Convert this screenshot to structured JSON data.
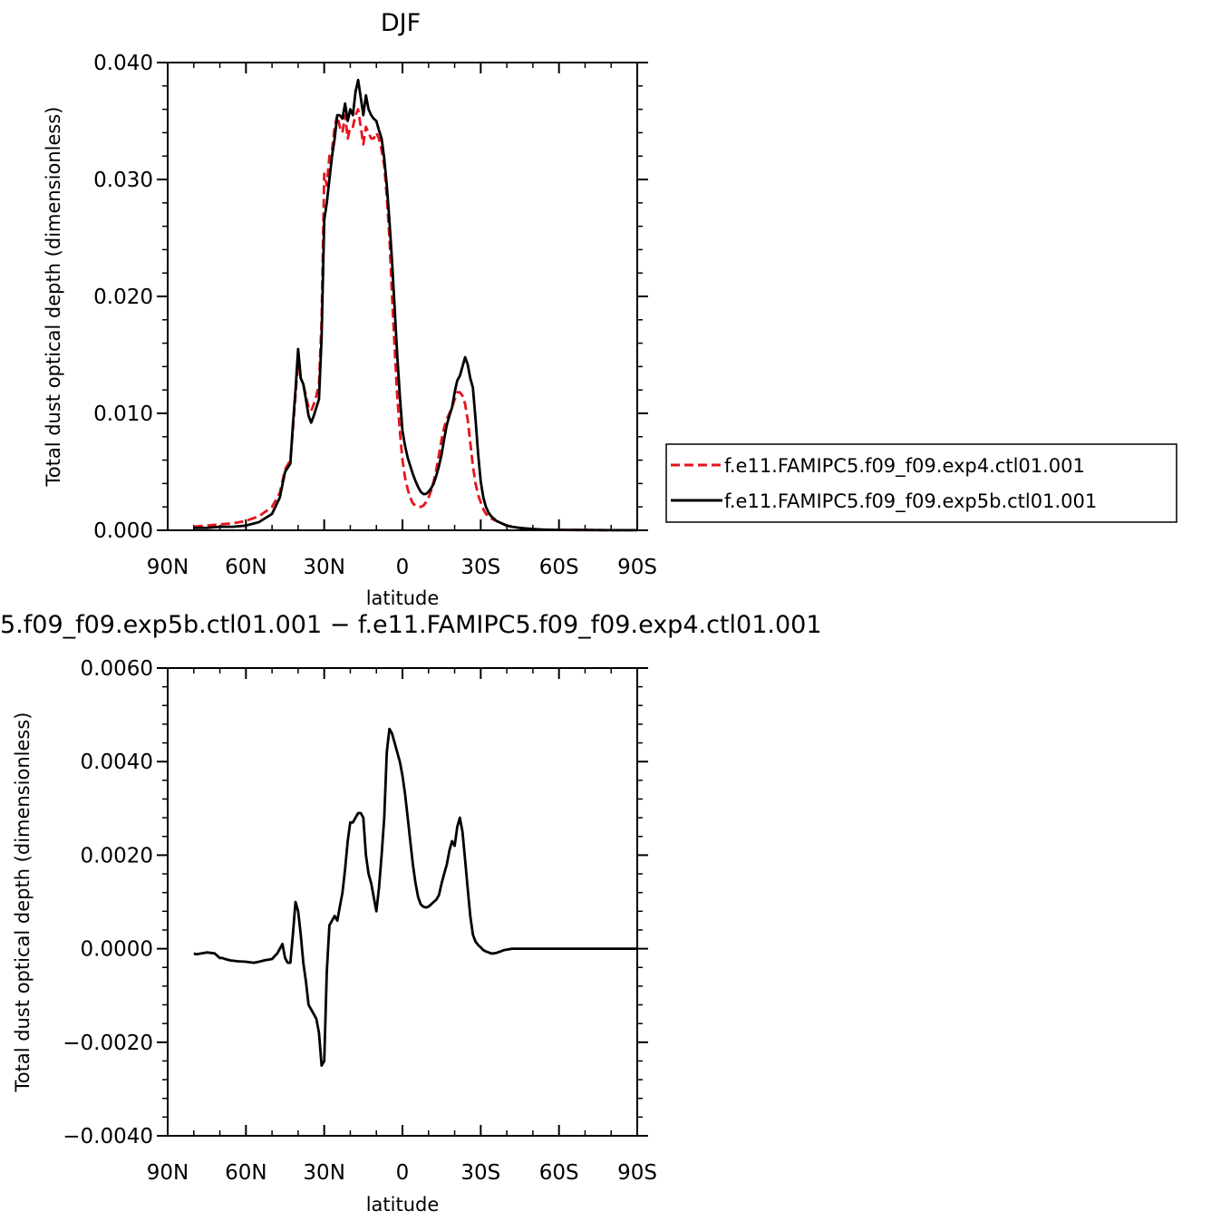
{
  "chart_data": [
    {
      "type": "line",
      "title": "DJF",
      "xlabel": "latitude",
      "ylabel": "Total dust optical depth (dimensionless)",
      "xlim": [
        90,
        -90
      ],
      "ylim": [
        0.0,
        0.04
      ],
      "xticks": [
        90,
        60,
        30,
        0,
        -30,
        -60,
        -90
      ],
      "xtick_labels": [
        "90N",
        "60N",
        "30N",
        "0",
        "30S",
        "60S",
        "90S"
      ],
      "yticks": [
        0.0,
        0.01,
        0.02,
        0.03,
        0.04
      ],
      "ytick_labels": [
        "0.000",
        "0.010",
        "0.020",
        "0.030",
        "0.040"
      ],
      "legend_position": "right",
      "series": [
        {
          "name": "f.e11.FAMIPC5.f09_f09.exp4.ctl01.001",
          "color": "#e8121b",
          "dash": "dashed",
          "x": [
            80,
            75,
            70,
            65,
            60,
            55,
            50,
            47,
            45,
            43,
            42,
            41,
            40,
            39,
            38,
            37,
            36,
            35,
            34,
            33,
            32,
            31,
            30,
            29,
            28,
            27,
            26,
            25,
            24,
            23,
            22,
            21,
            20,
            19,
            18,
            17,
            16,
            15,
            14,
            13,
            12,
            11,
            10,
            9,
            8,
            7,
            6,
            5,
            4,
            3,
            2,
            1,
            0,
            -1,
            -2,
            -3,
            -4,
            -5,
            -6,
            -7,
            -8,
            -9,
            -10,
            -11,
            -12,
            -13,
            -14,
            -15,
            -16,
            -17,
            -18,
            -19,
            -20,
            -21,
            -22,
            -23,
            -24,
            -25,
            -26,
            -27,
            -28,
            -29,
            -30,
            -31,
            -32,
            -33,
            -34,
            -35,
            -36,
            -37,
            -38,
            -40,
            -42,
            -45,
            -50,
            -55,
            -60,
            -70,
            -80,
            -90
          ],
          "y": [
            0.0003,
            0.0004,
            0.0005,
            0.0006,
            0.0008,
            0.0012,
            0.002,
            0.0032,
            0.0052,
            0.006,
            0.0085,
            0.0115,
            0.0145,
            0.013,
            0.0125,
            0.0115,
            0.0105,
            0.0102,
            0.0108,
            0.0115,
            0.0125,
            0.018,
            0.0305,
            0.0295,
            0.032,
            0.0325,
            0.0345,
            0.0355,
            0.0345,
            0.034,
            0.0355,
            0.0335,
            0.0345,
            0.0345,
            0.0355,
            0.036,
            0.0345,
            0.033,
            0.0345,
            0.034,
            0.0335,
            0.0335,
            0.034,
            0.0335,
            0.0325,
            0.0312,
            0.0285,
            0.025,
            0.02,
            0.0155,
            0.0115,
            0.0085,
            0.006,
            0.0045,
            0.0035,
            0.0028,
            0.0023,
            0.0021,
            0.002,
            0.002,
            0.0021,
            0.0024,
            0.0028,
            0.0034,
            0.0042,
            0.0052,
            0.0065,
            0.0078,
            0.0088,
            0.0095,
            0.01,
            0.0105,
            0.0112,
            0.0118,
            0.0118,
            0.0115,
            0.0108,
            0.0095,
            0.0075,
            0.0055,
            0.004,
            0.003,
            0.0024,
            0.0018,
            0.0014,
            0.0012,
            0.001,
            0.0009,
            0.0008,
            0.0007,
            0.0006,
            0.0004,
            0.0003,
            0.0002,
            0.0001,
            5e-05,
            3e-05,
            2e-05,
            1e-05,
            1e-05
          ]
        },
        {
          "name": "f.e11.FAMIPC5.f09_f09.exp5b.ctl01.001",
          "color": "#000000",
          "dash": "solid",
          "x": [
            80,
            75,
            70,
            65,
            60,
            55,
            50,
            47,
            45,
            43,
            42,
            41,
            40,
            39,
            38,
            37,
            36,
            35,
            34,
            33,
            32,
            31,
            30,
            29,
            28,
            27,
            26,
            25,
            24,
            23,
            22,
            21,
            20,
            19,
            18,
            17,
            16,
            15,
            14,
            13,
            12,
            11,
            10,
            9,
            8,
            7,
            6,
            5,
            4,
            3,
            2,
            1,
            0,
            -1,
            -2,
            -3,
            -4,
            -5,
            -6,
            -7,
            -8,
            -9,
            -10,
            -11,
            -12,
            -13,
            -14,
            -15,
            -16,
            -17,
            -18,
            -19,
            -20,
            -21,
            -22,
            -23,
            -24,
            -25,
            -26,
            -27,
            -28,
            -29,
            -30,
            -31,
            -32,
            -33,
            -34,
            -35,
            -36,
            -37,
            -38,
            -40,
            -42,
            -45,
            -50,
            -55,
            -60,
            -70,
            -80,
            -90
          ],
          "y": [
            0.0002,
            0.0002,
            0.0003,
            0.0003,
            0.0004,
            0.0007,
            0.0014,
            0.0028,
            0.005,
            0.0057,
            0.009,
            0.012,
            0.0155,
            0.013,
            0.0125,
            0.0112,
            0.0098,
            0.0092,
            0.0098,
            0.0105,
            0.0112,
            0.0165,
            0.0265,
            0.028,
            0.03,
            0.032,
            0.0335,
            0.0355,
            0.0355,
            0.0352,
            0.0365,
            0.035,
            0.036,
            0.0355,
            0.0375,
            0.0385,
            0.037,
            0.0355,
            0.0372,
            0.036,
            0.0355,
            0.0352,
            0.035,
            0.0342,
            0.0335,
            0.0318,
            0.0295,
            0.0265,
            0.023,
            0.019,
            0.015,
            0.0115,
            0.0085,
            0.0072,
            0.0062,
            0.0055,
            0.0048,
            0.0042,
            0.0037,
            0.0033,
            0.0031,
            0.0031,
            0.0033,
            0.0036,
            0.004,
            0.0047,
            0.0055,
            0.0065,
            0.0078,
            0.009,
            0.0098,
            0.0105,
            0.0118,
            0.0128,
            0.0132,
            0.014,
            0.0148,
            0.0142,
            0.013,
            0.0122,
            0.0095,
            0.0065,
            0.0042,
            0.0028,
            0.002,
            0.0015,
            0.0012,
            0.001,
            0.0008,
            0.0007,
            0.0006,
            0.0004,
            0.0003,
            0.0002,
            0.0001,
            5e-05,
            3e-05,
            2e-05,
            1e-05,
            1e-05
          ]
        }
      ]
    },
    {
      "type": "line",
      "title": "5.f09_f09.exp5b.ctl01.001 − f.e11.FAMIPC5.f09_f09.exp4.ctl01.001",
      "xlabel": "latitude",
      "ylabel": "Total dust optical depth (dimensionless)",
      "xlim": [
        90,
        -90
      ],
      "ylim": [
        -0.004,
        0.006
      ],
      "xticks": [
        90,
        60,
        30,
        0,
        -30,
        -60,
        -90
      ],
      "xtick_labels": [
        "90N",
        "60N",
        "30N",
        "0",
        "30S",
        "60S",
        "90S"
      ],
      "yticks": [
        -0.004,
        -0.002,
        0.0,
        0.002,
        0.004,
        0.006
      ],
      "ytick_labels": [
        "−0.0040",
        "−0.0020",
        "0.0000",
        "0.0020",
        "0.0040",
        "0.0060"
      ],
      "series": [
        {
          "color": "#000000",
          "dash": "solid",
          "x": [
            80,
            79,
            77,
            75,
            72,
            70,
            69,
            68,
            66,
            63,
            60,
            57,
            55,
            53,
            50,
            48,
            46,
            45,
            44,
            43,
            42,
            41,
            40,
            39,
            38,
            37,
            36,
            35,
            34,
            33,
            32,
            31,
            30,
            29,
            28,
            27,
            26,
            25,
            24,
            23,
            22,
            21,
            20,
            19,
            18,
            17,
            16,
            15,
            14,
            13,
            12,
            11,
            10,
            9,
            8,
            7,
            6,
            5,
            4,
            3,
            2,
            1,
            0,
            -1,
            -2,
            -3,
            -4,
            -5,
            -6,
            -7,
            -8,
            -9,
            -10,
            -11,
            -12,
            -13,
            -14,
            -15,
            -16,
            -17,
            -18,
            -19,
            -20,
            -21,
            -22,
            -23,
            -24,
            -25,
            -26,
            -27,
            -28,
            -29,
            -30,
            -31,
            -32,
            -33,
            -34,
            -35,
            -36,
            -37,
            -38,
            -39,
            -40,
            -41,
            -42,
            -43,
            -45,
            -48,
            -50,
            -55,
            -60,
            -70,
            -80,
            -90
          ],
          "y": [
            -0.0001,
            -0.00012,
            -0.0001,
            -8e-05,
            -0.0001,
            -0.0002,
            -0.0002,
            -0.00022,
            -0.00025,
            -0.00027,
            -0.00028,
            -0.0003,
            -0.00028,
            -0.00025,
            -0.00022,
            -0.0001,
            0.0001,
            -0.0002,
            -0.0003,
            -0.0003,
            0.0003,
            0.001,
            0.0008,
            0.0003,
            -0.0003,
            -0.0007,
            -0.0012,
            -0.0013,
            -0.0014,
            -0.0015,
            -0.0018,
            -0.0025,
            -0.0024,
            -0.0005,
            0.0005,
            0.0006,
            0.0007,
            0.0006,
            0.0009,
            0.0012,
            0.0017,
            0.0023,
            0.0027,
            0.0027,
            0.0028,
            0.0029,
            0.0029,
            0.0028,
            0.002,
            0.0016,
            0.0014,
            0.0011,
            0.0008,
            0.0013,
            0.002,
            0.0028,
            0.0042,
            0.0047,
            0.0046,
            0.0044,
            0.0042,
            0.004,
            0.0037,
            0.0033,
            0.0028,
            0.0023,
            0.0018,
            0.0014,
            0.0011,
            0.00095,
            0.0009,
            0.00088,
            0.0009,
            0.00095,
            0.001,
            0.00105,
            0.00115,
            0.0014,
            0.0016,
            0.0018,
            0.0021,
            0.0023,
            0.0022,
            0.0026,
            0.0028,
            0.0025,
            0.0019,
            0.0013,
            0.0007,
            0.0003,
            0.00015,
            8e-05,
            3e-05,
            -3e-05,
            -6e-05,
            -8e-05,
            -0.0001,
            -0.0001,
            -9e-05,
            -7e-05,
            -5e-05,
            -3e-05,
            -2e-05,
            -1e-05,
            0.0,
            0.0,
            0.0,
            0.0,
            0.0,
            0.0,
            0.0,
            0.0,
            0.0,
            0.0
          ]
        }
      ]
    }
  ]
}
